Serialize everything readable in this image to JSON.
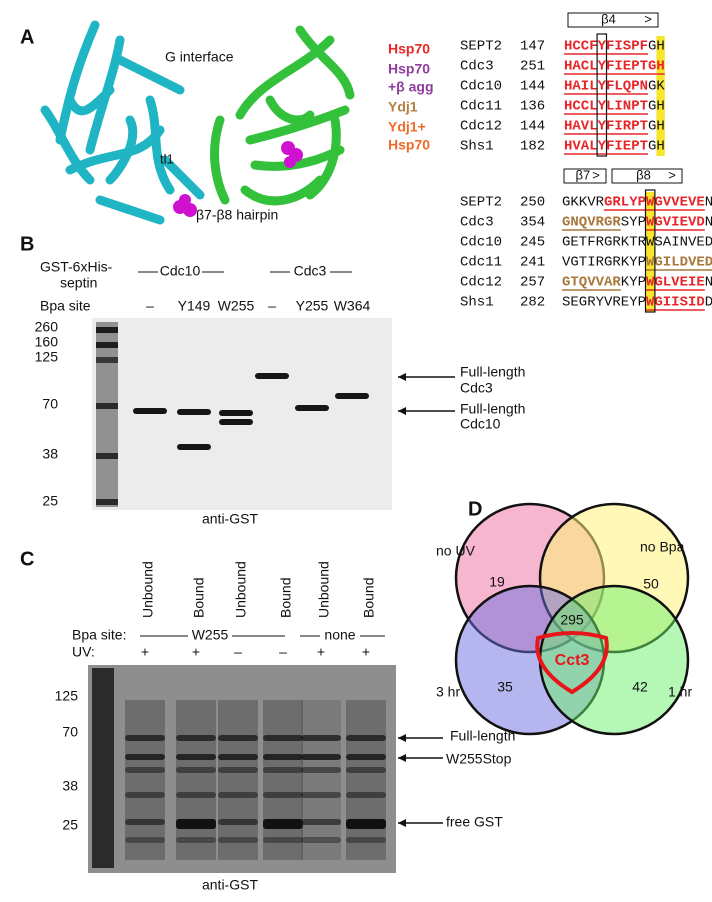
{
  "panel_a": {
    "label": "A",
    "g_interface": "G interface",
    "tl1": "tl1",
    "hairpin": "β7-β8 hairpin",
    "legend": [
      {
        "lines": [
          "Hsp70"
        ],
        "color": "#e8262a"
      },
      {
        "lines": [
          "Hsp70",
          "+β agg"
        ],
        "color": "#8e3d9e"
      },
      {
        "lines": [
          "Ydj1"
        ],
        "color": "#b08040"
      },
      {
        "lines": [
          "Ydj1+",
          "Hsp70"
        ],
        "color": "#ef6a2a"
      }
    ],
    "alignment_1": {
      "structure": [
        "β4",
        ">"
      ],
      "rows": [
        {
          "name": "SEPT2",
          "start": "147",
          "segments": [
            {
              "t": "HCCFYFISPF",
              "s": "red"
            },
            {
              "t": "G",
              "s": "plain"
            },
            {
              "t": "H",
              "s": "plain-hl"
            }
          ]
        },
        {
          "name": "Cdc3",
          "start": "251",
          "segments": [
            {
              "t": "HACLYFIEPTG",
              "s": "red"
            },
            {
              "t": "H",
              "s": "red-hl"
            }
          ]
        },
        {
          "name": "Cdc10",
          "start": "144",
          "segments": [
            {
              "t": "HAILYFLQPN",
              "s": "red"
            },
            {
              "t": "G",
              "s": "plain"
            },
            {
              "t": "K",
              "s": "plain-hl"
            }
          ]
        },
        {
          "name": "Cdc11",
          "start": "136",
          "segments": [
            {
              "t": "HCCLYLINPT",
              "s": "red"
            },
            {
              "t": "G",
              "s": "plain"
            },
            {
              "t": "H",
              "s": "plain-hl"
            }
          ]
        },
        {
          "name": "Cdc12",
          "start": "144",
          "segments": [
            {
              "t": "HAVLYFIRPT",
              "s": "red"
            },
            {
              "t": "G",
              "s": "plain"
            },
            {
              "t": "H",
              "s": "plain-hl"
            }
          ]
        },
        {
          "name": "Shs1",
          "start": "182",
          "segments": [
            {
              "t": "HVALYFIEPT",
              "s": "red"
            },
            {
              "t": "G",
              "s": "plain"
            },
            {
              "t": "H",
              "s": "plain-hl"
            }
          ]
        }
      ]
    },
    "alignment_2": {
      "structure": [
        "β7",
        ">",
        "β8",
        ">"
      ],
      "rows": [
        {
          "name": "SEPT2",
          "start": "250",
          "segments": [
            {
              "t": "GKKVR",
              "s": "plain"
            },
            {
              "t": "GRLYP",
              "s": "red"
            },
            {
              "t": "W",
              "s": "red-hl"
            },
            {
              "t": "GVVEVE",
              "s": "red"
            },
            {
              "t": "N",
              "s": "plain"
            }
          ]
        },
        {
          "name": "Cdc3",
          "start": "354",
          "segments": [
            {
              "t": "GNQVRGR",
              "s": "brown"
            },
            {
              "t": "SYP",
              "s": "plain"
            },
            {
              "t": "W",
              "s": "red-hl"
            },
            {
              "t": "GVIEVD",
              "s": "red"
            },
            {
              "t": "N",
              "s": "plain"
            }
          ]
        },
        {
          "name": "Cdc10",
          "start": "245",
          "segments": [
            {
              "t": "GETFRGRKTR",
              "s": "plain"
            },
            {
              "t": "W",
              "s": "plain-hl"
            },
            {
              "t": "SAINVED",
              "s": "plain"
            }
          ]
        },
        {
          "name": "Cdc11",
          "start": "241",
          "segments": [
            {
              "t": "VGTIRGRKYP",
              "s": "plain"
            },
            {
              "t": "W",
              "s": "brown-hl"
            },
            {
              "t": "GILDVED",
              "s": "brown"
            }
          ]
        },
        {
          "name": "Cdc12",
          "start": "257",
          "segments": [
            {
              "t": "GTQVVAR",
              "s": "brown"
            },
            {
              "t": "KYP",
              "s": "plain"
            },
            {
              "t": "W",
              "s": "red-hl"
            },
            {
              "t": "GLVEIE",
              "s": "red"
            },
            {
              "t": "N",
              "s": "plain"
            }
          ]
        },
        {
          "name": "Shs1",
          "start": "282",
          "segments": [
            {
              "t": "SEGRYVREYP",
              "s": "plain"
            },
            {
              "t": "W",
              "s": "red-hl"
            },
            {
              "t": "GIISID",
              "s": "red"
            },
            {
              "t": "D",
              "s": "plain"
            }
          ]
        }
      ]
    }
  },
  "panel_b": {
    "label": "B",
    "construct": [
      "GST-6xHis-",
      "septin"
    ],
    "group_1": "Cdc10",
    "group_2": "Cdc3",
    "bpa_label": "Bpa site",
    "lanes": [
      "–",
      "Y149",
      "W255",
      "–",
      "Y255",
      "W364"
    ],
    "markers": [
      "260",
      "160",
      "125",
      "70",
      "38",
      "25"
    ],
    "arrow_1": [
      "Full-length",
      "Cdc3"
    ],
    "arrow_2": [
      "Full-length",
      "Cdc10"
    ],
    "blot": "anti-GST"
  },
  "panel_c": {
    "label": "C",
    "columns": [
      "Unbound",
      "Bound",
      "Unbound",
      "Bound",
      "Unbound",
      "Bound"
    ],
    "bpa_label": "Bpa site:",
    "group_1": "W255",
    "group_2": "none",
    "uv_label": "UV:",
    "uv": [
      "+",
      "+",
      "–",
      "–",
      "+",
      "+"
    ],
    "markers": [
      "125",
      "70",
      "38",
      "25"
    ],
    "arrows": [
      "Full-length",
      "W255Stop",
      "free GST"
    ],
    "blot": "anti-GST"
  },
  "panel_d": {
    "label": "D",
    "sets": [
      "no UV",
      "no Bpa",
      "3 hr",
      "1 hr"
    ],
    "counts": [
      "19",
      "50",
      "295",
      "35",
      "42"
    ],
    "highlight": "Cct3"
  }
}
